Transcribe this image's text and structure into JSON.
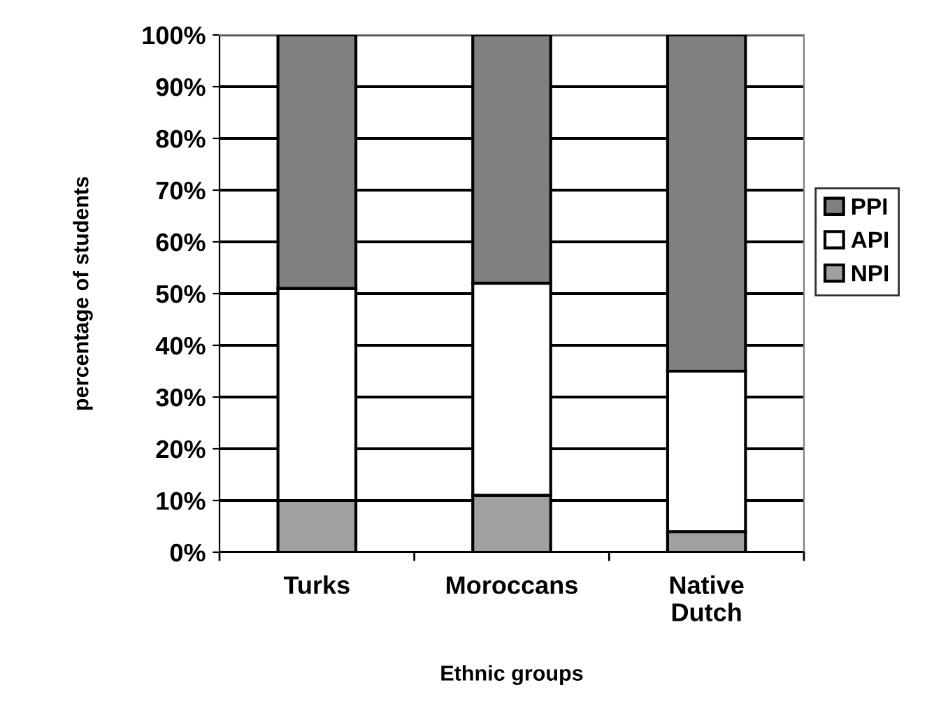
{
  "chart_data": {
    "type": "bar",
    "stacked": true,
    "xlabel": "Ethnic groups",
    "ylabel": "percentage of students",
    "categories": [
      "Turks",
      "Moroccans",
      "Native\nDutch"
    ],
    "series": [
      {
        "name": "NPI",
        "color": "#a0a0a0",
        "values": [
          10,
          11,
          4
        ]
      },
      {
        "name": "API",
        "color": "#ffffff",
        "values": [
          41,
          41,
          31
        ]
      },
      {
        "name": "PPI",
        "color": "#808080",
        "values": [
          49,
          48,
          65
        ]
      }
    ],
    "ylim": [
      0,
      100
    ],
    "yticks": [
      {
        "value": 0,
        "label": "0%"
      },
      {
        "value": 10,
        "label": "10%"
      },
      {
        "value": 20,
        "label": "20%"
      },
      {
        "value": 30,
        "label": "30%"
      },
      {
        "value": 40,
        "label": "40%"
      },
      {
        "value": 50,
        "label": "50%"
      },
      {
        "value": 60,
        "label": "60%"
      },
      {
        "value": 70,
        "label": "70%"
      },
      {
        "value": 80,
        "label": "80%"
      },
      {
        "value": 90,
        "label": "90%"
      },
      {
        "value": 100,
        "label": "100%"
      }
    ],
    "grid": "y",
    "legend": "right"
  }
}
